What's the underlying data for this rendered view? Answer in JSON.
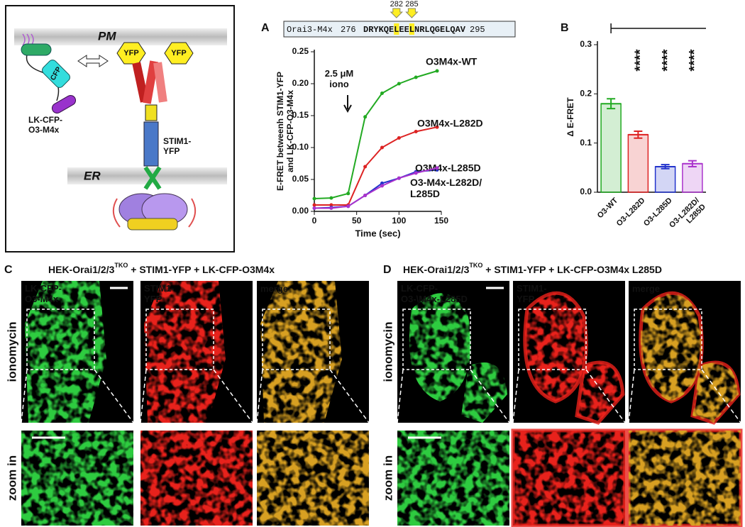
{
  "schematic": {
    "pm": "PM",
    "er": "ER",
    "cfp": "CFP",
    "yfp_left": "YFP",
    "yfp_right": "YFP",
    "lk_cfp": "LK-CFP-\nO3-M4x",
    "stim1": "STIM1-\nYFP"
  },
  "chart_data": [
    {
      "type": "line",
      "label": "A",
      "sequence": {
        "name": "Orai3-M4x",
        "start": "276",
        "residues": "DRYKQELEELNRLQGELQAV",
        "end": "295",
        "markers": [
          "282",
          "285"
        ]
      },
      "annotation": "2.5 μM\niono",
      "xlabel": "Time (sec)",
      "ylabel": "E-FRET betweenh STIM1-YFP\nand LK-CFP-O3-M4x",
      "x": [
        0,
        20,
        40,
        60,
        80,
        100,
        120,
        145
      ],
      "xlim": [
        0,
        150
      ],
      "xticks": [
        0,
        50,
        100,
        150
      ],
      "ylim": [
        0,
        0.25
      ],
      "yticks": [
        {
          "value": 0,
          "label": "0.00"
        },
        {
          "value": 0.05,
          "label": "0.05"
        },
        {
          "value": 0.1,
          "label": "0.10"
        },
        {
          "value": 0.15,
          "label": "0.15"
        },
        {
          "value": 0.2,
          "label": "0.20"
        },
        {
          "value": 0.25,
          "label": "0.25"
        }
      ],
      "series": [
        {
          "name": "O3M4x-WT",
          "color": "#22aa22",
          "values": [
            0.02,
            0.021,
            0.028,
            0.148,
            0.185,
            0.2,
            0.21,
            0.22
          ]
        },
        {
          "name": "O3M4x-L282D",
          "color": "#dd2222",
          "values": [
            0.01,
            0.01,
            0.01,
            0.07,
            0.1,
            0.115,
            0.125,
            0.132
          ]
        },
        {
          "name": "O3M4x-L285D",
          "color": "#2233cc",
          "values": [
            0.005,
            0.006,
            0.008,
            0.025,
            0.044,
            0.052,
            0.062,
            0.065
          ]
        },
        {
          "name": "O3-M4x-L282D/\nL285D",
          "color": "#aa33cc",
          "values": [
            0.005,
            0.005,
            0.008,
            0.025,
            0.04,
            0.052,
            0.06,
            0.068
          ]
        }
      ]
    },
    {
      "type": "bar",
      "label": "B",
      "ylabel": "Δ E-FRET",
      "categories": [
        "O3-WT",
        "O3-L282D",
        "O3-L285D",
        "O3-L282D/\nL285D"
      ],
      "values": [
        0.18,
        0.117,
        0.052,
        0.058
      ],
      "errors": [
        0.01,
        0.007,
        0.004,
        0.006
      ],
      "colors": [
        "#22aa22",
        "#dd2222",
        "#2233cc",
        "#aa33cc"
      ],
      "significance": [
        null,
        "****",
        "****",
        "****"
      ],
      "ylim": [
        0,
        0.3
      ],
      "yticks": [
        {
          "value": 0,
          "label": "0.0"
        },
        0.1,
        0.2,
        0.3
      ]
    }
  ],
  "panels": [
    {
      "label": "C",
      "title": {
        "main": "HEK-Orai1/2/3",
        "sup": "TKO",
        "rest": " + STIM1-YFP + LK-CFP-O3M4x"
      },
      "rows": [
        "ionomycin",
        "zoom in"
      ],
      "columns": [
        "LK-CFP-\nO3-M4x",
        "STIM1-\nYFP",
        "merge"
      ]
    },
    {
      "label": "D",
      "title": {
        "main": "HEK-Orai1/2/3",
        "sup": "TKO",
        "rest": " + STIM1-YFP + LK-CFP-O3M4x L285D"
      },
      "rows": [
        "ionomycin",
        "zoom in"
      ],
      "columns": [
        "LK-CFP-\nO3-\\M4x-L285D",
        "STIM1-\nYFP",
        "merge"
      ]
    }
  ]
}
